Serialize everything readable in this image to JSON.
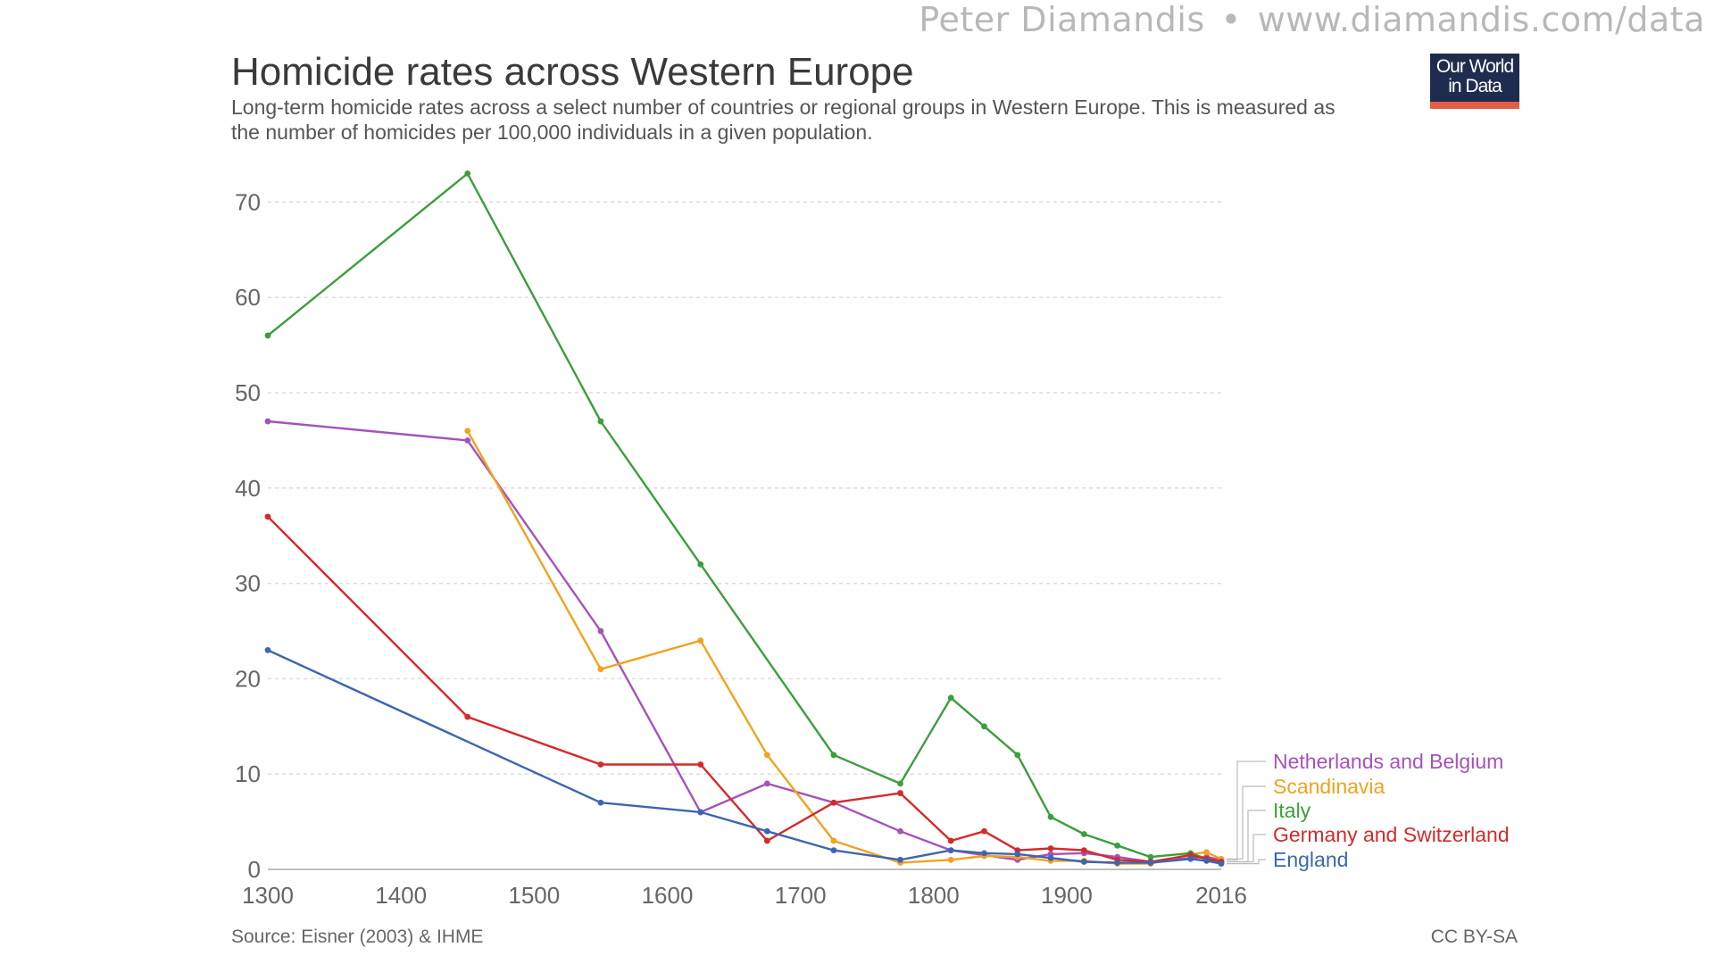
{
  "watermark": {
    "name": "Peter Diamandis",
    "separator": "•",
    "url": "www.diamandis.com/data"
  },
  "logo": {
    "line1": "Our World",
    "line2": "in Data"
  },
  "source": "Source: Eisner (2003) & IHME",
  "license": "CC BY-SA",
  "chart_data": {
    "type": "line",
    "title": "Homicide rates across Western Europe",
    "subtitle": "Long-term homicide rates across a select number of countries or regional groups in Western Europe. This is measured as the number of homicides per 100,000 individuals in a given population.",
    "xlim": [
      1300,
      2016
    ],
    "ylim": [
      0,
      73
    ],
    "x_ticks": [
      "1300",
      "1400",
      "1500",
      "1600",
      "1700",
      "1800",
      "1900",
      "2016"
    ],
    "x_tick_values": [
      1300,
      1400,
      1500,
      1600,
      1700,
      1800,
      1900,
      2016
    ],
    "y_ticks": [
      "0",
      "10",
      "20",
      "30",
      "40",
      "50",
      "60",
      "70"
    ],
    "y_tick_values": [
      0,
      10,
      20,
      30,
      40,
      50,
      60,
      70
    ],
    "grid": "horizontal dashed",
    "legend_placement": "right",
    "series": [
      {
        "name": "Netherlands and Belgium",
        "color": "#a652ba",
        "x": [
          1300,
          1450,
          1550,
          1625,
          1675,
          1725,
          1775,
          1813,
          1838,
          1863,
          1888,
          1913,
          1938,
          1963,
          1993,
          2005,
          2016
        ],
        "y": [
          47,
          45,
          25,
          6,
          9,
          7,
          4,
          2,
          1.5,
          1,
          1.6,
          1.7,
          1.3,
          0.8,
          1.2,
          1.3,
          1.0
        ]
      },
      {
        "name": "Scandinavia",
        "color": "#f2a21e",
        "x": [
          1450,
          1550,
          1625,
          1675,
          1725,
          1775,
          1813,
          1838,
          1863,
          1888,
          1913,
          1938,
          1963,
          1993,
          2005,
          2016
        ],
        "y": [
          46,
          21,
          24,
          12,
          3,
          0.7,
          1,
          1.4,
          1.3,
          0.9,
          0.9,
          0.6,
          0.6,
          1.6,
          1.8,
          1.1
        ]
      },
      {
        "name": "Italy",
        "color": "#3c9e3c",
        "x": [
          1300,
          1450,
          1550,
          1625,
          1725,
          1775,
          1813,
          1838,
          1863,
          1888,
          1913,
          1938,
          1963,
          1993,
          2005,
          2016
        ],
        "y": [
          56,
          73,
          47,
          32,
          12,
          9,
          18,
          15,
          12,
          5.5,
          3.7,
          2.5,
          1.3,
          1.7,
          1.1,
          0.8
        ]
      },
      {
        "name": "Germany and Switzerland",
        "color": "#d42a2a",
        "x": [
          1300,
          1450,
          1550,
          1625,
          1675,
          1725,
          1775,
          1813,
          1838,
          1863,
          1888,
          1913,
          1938,
          1963,
          1993,
          2005,
          2016
        ],
        "y": [
          37,
          16,
          11,
          11,
          3,
          7,
          8,
          3,
          4,
          2,
          2.2,
          2,
          1,
          0.8,
          1.5,
          1.1,
          0.8
        ]
      },
      {
        "name": "England",
        "color": "#3d66b0",
        "x": [
          1300,
          1550,
          1625,
          1675,
          1725,
          1775,
          1813,
          1838,
          1863,
          1888,
          1913,
          1938,
          1963,
          1993,
          2005,
          2016
        ],
        "y": [
          23,
          7,
          6,
          4,
          2,
          1,
          2,
          1.7,
          1.6,
          1.2,
          0.8,
          0.7,
          0.7,
          1.1,
          0.9,
          0.6
        ]
      }
    ]
  }
}
